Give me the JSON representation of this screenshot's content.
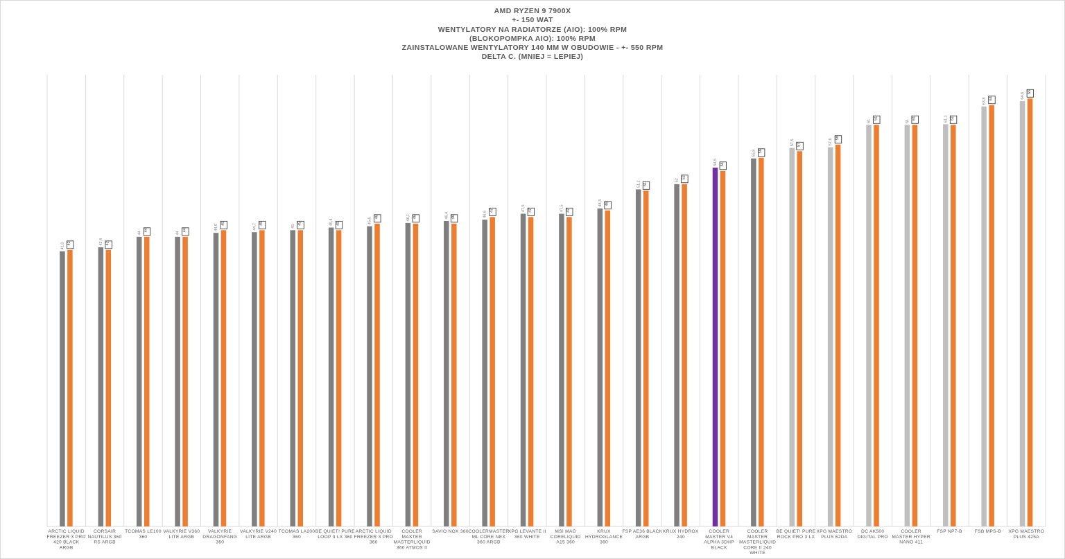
{
  "title_lines": [
    "AMD RYZEN 9 7900X",
    "+- 150 WAT",
    "WENTYLATORY NA RADIATORZE (AIO): 100% RPM",
    "(BLOKOPOMPKA AIO): 100% RPM",
    "ZAINSTALOWANE WENTYLATORY 140 MM W OBUDOWIE - +- 550 RPM",
    "DELTA C. (MNIEJ = LEPIEJ)"
  ],
  "colors": {
    "aio": "#7f7f7f",
    "highlight": "#7030a0",
    "air": "#bfbfbf",
    "second_series": "#ed7d31",
    "grid": "#d9d9d9",
    "text": "#595959"
  },
  "chart_data": {
    "type": "bar",
    "title": "DELTA C. (MNIEJ = LEPIEJ)",
    "xlabel": "",
    "ylabel": "",
    "grid": "vertical category separators",
    "legend": "none",
    "categories": [
      [
        "ARCTIC LIQUID",
        "FREEZER 3 PRO",
        "420 BLACK",
        "ARGB"
      ],
      [
        "CORSAIR",
        "NAUTILUS 360",
        "RS ARGB"
      ],
      [
        "TCOMAS LE100",
        "360"
      ],
      [
        "VALKYRIE V360",
        "LITE ARGB"
      ],
      [
        "VALKYRIE",
        "DRAGONFANG",
        "360"
      ],
      [
        "VALKYRIE V240",
        "LITE ARGB"
      ],
      [
        "TCOMAS LA200",
        "360"
      ],
      [
        "BE QUIET! PURE",
        "LOOP 3 LX 360"
      ],
      [
        "ARCTIC LIQUID",
        "FREEZER 3 PRO",
        "360"
      ],
      [
        "COOLER",
        "MASTER",
        "MASTERLIQUID",
        "360 ATMOS II"
      ],
      [
        "SAVIO NOX 360"
      ],
      [
        "COOLERMASTER",
        "ML CORE NEX",
        "360 ARGB"
      ],
      [
        "XPG LEVANTE II",
        "360 WHITE"
      ],
      [
        "MSI MAG",
        "CORELIQUID",
        "A15 360"
      ],
      [
        "KRUX",
        "HYDROGLANCE",
        "360"
      ],
      [
        "FSP AE36 BLACK",
        "ARGB"
      ],
      [
        "KRUX HYDROX",
        "240"
      ],
      [
        "COOLER",
        "MASTER V4",
        "ALPHA 3DHP",
        "BLACK"
      ],
      [
        "COOLER",
        "MASTER",
        "MASTERLIQUID",
        "CORE II 240",
        "WHITE"
      ],
      [
        "BE QUIET! PURE",
        "ROCK PRO 3 LX"
      ],
      [
        "XPG MAESTRO",
        "PLUS 62DA"
      ],
      [
        "DC AK500",
        "DIGITAL PRO"
      ],
      [
        "COOLER",
        "MASTER HYPER",
        "NANO 411"
      ],
      [
        "FSP NP7-B"
      ],
      [
        "FSB MPS-B"
      ],
      [
        "XPG MAESTRO",
        "PLUS 425A"
      ]
    ],
    "bar_kinds": [
      "aio",
      "aio",
      "aio",
      "aio",
      "aio",
      "aio",
      "aio",
      "aio",
      "aio",
      "aio",
      "aio",
      "aio",
      "aio",
      "aio",
      "aio",
      "aio",
      "aio",
      "highlight",
      "aio",
      "air",
      "air",
      "air",
      "air",
      "air",
      "air",
      "air"
    ],
    "series": [
      {
        "name": "series-1",
        "values": [
          41.8,
          42.4,
          44,
          44,
          44.6,
          44.7,
          45,
          45.4,
          45.6,
          46.1,
          46.4,
          46.6,
          47.5,
          47.5,
          48.3,
          51.2,
          52,
          54.5,
          55.9,
          57.5,
          57.6,
          61,
          61,
          61.1,
          63.8,
          64.6
        ],
        "labels": [
          "41,8",
          "42,4",
          "44",
          "44",
          "44,6",
          "44,7",
          "45",
          "45,4",
          "45,6",
          "46,1",
          "46,4",
          "46,6",
          "47,5",
          "47,5",
          "48,3",
          "51,2",
          "52",
          "54,5",
          "55,9",
          "57,5",
          "57,6",
          "61",
          "61",
          "61,1",
          "63,8",
          "64,6"
        ]
      },
      {
        "name": "series-2",
        "values": [
          42,
          42,
          44,
          44,
          45,
          45,
          45,
          45,
          46,
          46,
          46,
          47,
          47,
          47,
          48,
          51,
          52,
          54,
          56,
          57,
          58,
          61,
          61,
          61,
          64,
          65
        ],
        "labels": [
          "42",
          "42",
          "44",
          "44",
          "45",
          "45",
          "45",
          "45",
          "46",
          "46",
          "46",
          "47",
          "47",
          "47",
          "48",
          "51",
          "52",
          "54",
          "56",
          "57",
          "58",
          "61",
          "61",
          "61",
          "64",
          "65"
        ]
      }
    ],
    "ylim": [
      0,
      66.5
    ]
  }
}
